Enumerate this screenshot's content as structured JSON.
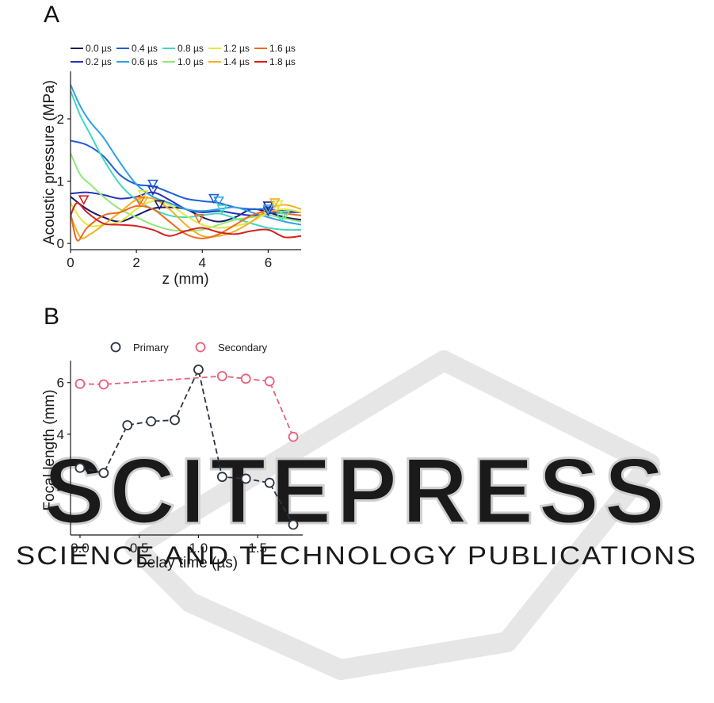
{
  "watermark": {
    "name": "SCITEPRESS",
    "tagline": "SCIENCE AND TECHNOLOGY PUBLICATIONS",
    "color": "#d0d0d0"
  },
  "chart_data": [
    {
      "panel": "A",
      "type": "line",
      "xlabel": "z (mm)",
      "ylabel": "Acoustic pressure (MPa)",
      "xlim": [
        0,
        7
      ],
      "ylim": [
        -0.1,
        2.7
      ],
      "xticks": [
        0,
        2,
        4,
        6
      ],
      "yticks": [
        0,
        1,
        2
      ],
      "xtick_labels": [
        "0",
        "2",
        "4",
        "6"
      ],
      "ytick_labels": [
        "0",
        "1",
        "2"
      ],
      "grid": false,
      "legend_position": "top",
      "series": [
        {
          "name": "0.0 µs",
          "color": "#1a1a66",
          "x": [
            0,
            0.5,
            1,
            1.5,
            2,
            2.5,
            3,
            3.5,
            4,
            4.5,
            5,
            5.5,
            6,
            6.5,
            7
          ],
          "y": [
            0.75,
            0.55,
            0.42,
            0.35,
            0.45,
            0.56,
            0.58,
            0.55,
            0.42,
            0.35,
            0.42,
            0.55,
            0.5,
            0.42,
            0.38
          ],
          "markers": [
            {
              "x": 2.7,
              "y": 0.62
            },
            {
              "x": 6.0,
              "y": 0.6
            }
          ]
        },
        {
          "name": "0.2 µs",
          "color": "#2233bb",
          "x": [
            0,
            0.5,
            1,
            1.5,
            2,
            2.5,
            3,
            3.5,
            4,
            4.5,
            5,
            5.5,
            6,
            6.5,
            7
          ],
          "y": [
            0.8,
            0.82,
            0.78,
            0.72,
            0.75,
            0.82,
            0.7,
            0.55,
            0.5,
            0.52,
            0.48,
            0.45,
            0.48,
            0.5,
            0.5
          ],
          "markers": [
            {
              "x": 2.5,
              "y": 0.85
            },
            {
              "x": 6.0,
              "y": 0.52
            }
          ]
        },
        {
          "name": "0.4 µs",
          "color": "#1f5fd6",
          "x": [
            0,
            0.5,
            1,
            1.5,
            2,
            2.5,
            3,
            3.5,
            4,
            4.5,
            5,
            5.5,
            6,
            6.5,
            7
          ],
          "y": [
            1.65,
            1.58,
            1.4,
            1.1,
            0.95,
            0.92,
            0.82,
            0.72,
            0.68,
            0.65,
            0.58,
            0.55,
            0.55,
            0.52,
            0.5
          ],
          "markers": [
            {
              "x": 2.5,
              "y": 0.95
            },
            {
              "x": 4.35,
              "y": 0.72
            }
          ]
        },
        {
          "name": "0.6 µs",
          "color": "#2fa0e6",
          "x": [
            0,
            0.3,
            0.6,
            1,
            1.5,
            2,
            2.5,
            3,
            3.5,
            4,
            4.5,
            5,
            5.5,
            6,
            6.5,
            7
          ],
          "y": [
            2.55,
            2.2,
            1.95,
            1.7,
            1.3,
            0.95,
            0.75,
            0.65,
            0.55,
            0.52,
            0.55,
            0.58,
            0.5,
            0.42,
            0.35,
            0.3
          ],
          "markers": [
            {
              "x": 4.5,
              "y": 0.68
            },
            {
              "x": 6.0,
              "y": 0.55
            }
          ]
        },
        {
          "name": "0.8 µs",
          "color": "#40d8c0",
          "x": [
            0,
            0.3,
            0.6,
            1,
            1.5,
            2,
            2.5,
            3,
            3.5,
            4,
            4.5,
            5,
            5.5,
            6,
            6.5,
            7
          ],
          "y": [
            2.45,
            2.05,
            1.75,
            1.35,
            0.95,
            0.7,
            0.55,
            0.45,
            0.42,
            0.45,
            0.48,
            0.4,
            0.32,
            0.25,
            0.22,
            0.22
          ],
          "markers": [
            {
              "x": 4.6,
              "y": 0.55
            },
            {
              "x": 6.4,
              "y": 0.42
            }
          ]
        },
        {
          "name": "1.0 µs",
          "color": "#90e87a",
          "x": [
            0,
            0.3,
            0.6,
            1,
            1.5,
            2,
            2.5,
            3,
            3.5,
            4,
            4.5,
            5,
            5.5,
            6,
            6.5,
            7
          ],
          "y": [
            1.45,
            1.1,
            0.95,
            0.75,
            0.55,
            0.42,
            0.3,
            0.22,
            0.2,
            0.22,
            0.3,
            0.38,
            0.42,
            0.45,
            0.4,
            0.35
          ],
          "markers": [
            {
              "x": 6.5,
              "y": 0.45
            }
          ]
        },
        {
          "name": "1.2 µs",
          "color": "#e0e840",
          "x": [
            0,
            0.3,
            0.6,
            1,
            1.5,
            2,
            2.5,
            3,
            3.5,
            4,
            4.5,
            5,
            5.5,
            6,
            6.5,
            7
          ],
          "y": [
            0.65,
            0.4,
            0.28,
            0.3,
            0.35,
            0.55,
            0.68,
            0.62,
            0.45,
            0.3,
            0.25,
            0.28,
            0.35,
            0.5,
            0.55,
            0.5
          ],
          "markers": [
            {
              "x": 2.2,
              "y": 0.78
            },
            {
              "x": 6.3,
              "y": 0.62
            }
          ]
        },
        {
          "name": "1.4 µs",
          "color": "#f5b020",
          "x": [
            0,
            0.3,
            0.6,
            1,
            1.5,
            2,
            2.5,
            3,
            3.5,
            4,
            4.5,
            5,
            5.5,
            6,
            6.5,
            7
          ],
          "y": [
            0.45,
            0.1,
            0.15,
            0.3,
            0.5,
            0.7,
            0.72,
            0.55,
            0.3,
            0.12,
            0.12,
            0.2,
            0.35,
            0.55,
            0.62,
            0.55
          ],
          "markers": [
            {
              "x": 2.2,
              "y": 0.68
            },
            {
              "x": 6.2,
              "y": 0.65
            }
          ]
        },
        {
          "name": "1.6 µs",
          "color": "#f06a20",
          "x": [
            0,
            0.2,
            0.5,
            1,
            1.5,
            2,
            2.5,
            3,
            3.5,
            4,
            4.5,
            5,
            5.5,
            6,
            6.5,
            7
          ],
          "y": [
            0.5,
            0.05,
            0.25,
            0.45,
            0.5,
            0.6,
            0.55,
            0.35,
            0.15,
            0.08,
            0.15,
            0.3,
            0.45,
            0.52,
            0.48,
            0.45
          ],
          "markers": [
            {
              "x": 2.1,
              "y": 0.68
            },
            {
              "x": 3.9,
              "y": 0.4
            }
          ]
        },
        {
          "name": "1.8 µs",
          "color": "#d62020",
          "x": [
            0,
            0.2,
            0.5,
            1,
            1.5,
            2,
            2.5,
            3,
            3.5,
            4,
            4.5,
            5,
            5.5,
            6,
            6.5,
            7
          ],
          "y": [
            0.45,
            0.65,
            0.5,
            0.32,
            0.3,
            0.28,
            0.22,
            0.12,
            0.2,
            0.25,
            0.18,
            0.15,
            0.2,
            0.22,
            0.1,
            0.12
          ],
          "markers": [
            {
              "x": 0.4,
              "y": 0.7
            }
          ]
        }
      ]
    },
    {
      "panel": "B",
      "type": "line",
      "xlabel": "Delay time (µs)",
      "ylabel": "Focal length (mm)",
      "xlim": [
        -0.08,
        1.88
      ],
      "ylim": [
        0.1,
        6.85
      ],
      "xticks": [
        0,
        0.5,
        1,
        1.5
      ],
      "yticks": [
        2,
        4,
        6
      ],
      "xtick_labels": [
        "0.0",
        "0.5",
        "1.0",
        "1.5"
      ],
      "ytick_labels": [
        "2",
        "4",
        "6"
      ],
      "grid": false,
      "legend_position": "top",
      "x": [
        0,
        0.2,
        0.4,
        0.6,
        0.8,
        1.0,
        1.2,
        1.4,
        1.6,
        1.8
      ],
      "series": [
        {
          "name": "Primary",
          "color": "#2b3440",
          "values": [
            2.7,
            2.5,
            4.35,
            4.5,
            4.55,
            6.5,
            2.35,
            2.28,
            2.12,
            0.5
          ]
        },
        {
          "name": "Secondary",
          "color": "#e8607a",
          "values": [
            5.95,
            5.93,
            null,
            null,
            null,
            null,
            6.25,
            6.15,
            6.05,
            3.9
          ]
        }
      ]
    }
  ]
}
